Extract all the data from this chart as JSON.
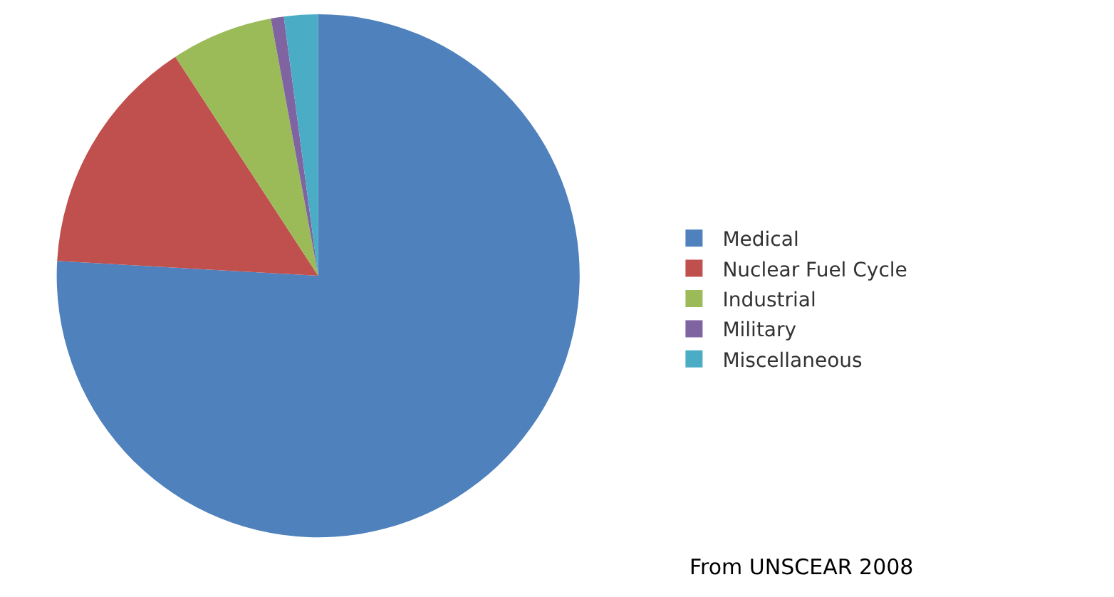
{
  "chart_data": {
    "type": "pie",
    "categories": [
      "Medical",
      "Nuclear Fuel Cycle",
      "Industrial",
      "Military",
      "Miscellaneous"
    ],
    "values": [
      75.9,
      14.9,
      6.3,
      0.8,
      2.1
    ],
    "colors": [
      "#4f81bd",
      "#c0504d",
      "#9bbb59",
      "#8064a2",
      "#4bacc6"
    ],
    "legend": "right",
    "annotations": [
      "From UNSCEAR 2008"
    ]
  }
}
